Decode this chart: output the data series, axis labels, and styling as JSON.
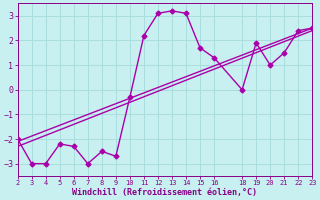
{
  "title": "",
  "xlabel": "Windchill (Refroidissement éolien,°C)",
  "ylabel": "",
  "bg_color": "#c8f0f0",
  "line_color": "#aa00aa",
  "grid_color": "#aadddd",
  "axis_label_color": "#880088",
  "tick_label_color": "#880088",
  "xlim": [
    2,
    23
  ],
  "ylim": [
    -3.5,
    3.5
  ],
  "xticks": [
    2,
    3,
    4,
    5,
    6,
    7,
    8,
    9,
    10,
    11,
    12,
    13,
    14,
    15,
    16,
    18,
    19,
    20,
    21,
    22,
    23
  ],
  "yticks": [
    -3,
    -2,
    -1,
    0,
    1,
    2,
    3
  ],
  "series1_x": [
    2,
    3,
    4,
    5,
    6,
    7,
    8,
    9,
    10,
    11,
    12,
    13,
    14,
    15,
    16,
    18,
    19,
    20,
    21,
    22,
    23
  ],
  "series1_y": [
    -2.0,
    -3.0,
    -3.0,
    -2.2,
    -2.3,
    -3.0,
    -2.5,
    -2.7,
    -0.3,
    2.2,
    3.1,
    3.2,
    3.1,
    1.7,
    1.3,
    0.0,
    1.9,
    1.0,
    1.5,
    2.4,
    2.5
  ],
  "line1_x": [
    2,
    23
  ],
  "line1_y": [
    -2.1,
    2.5
  ],
  "line2_x": [
    2,
    23
  ],
  "line2_y": [
    -2.3,
    2.4
  ],
  "line_width": 1.0,
  "marker": "D",
  "marker_size": 2.5
}
